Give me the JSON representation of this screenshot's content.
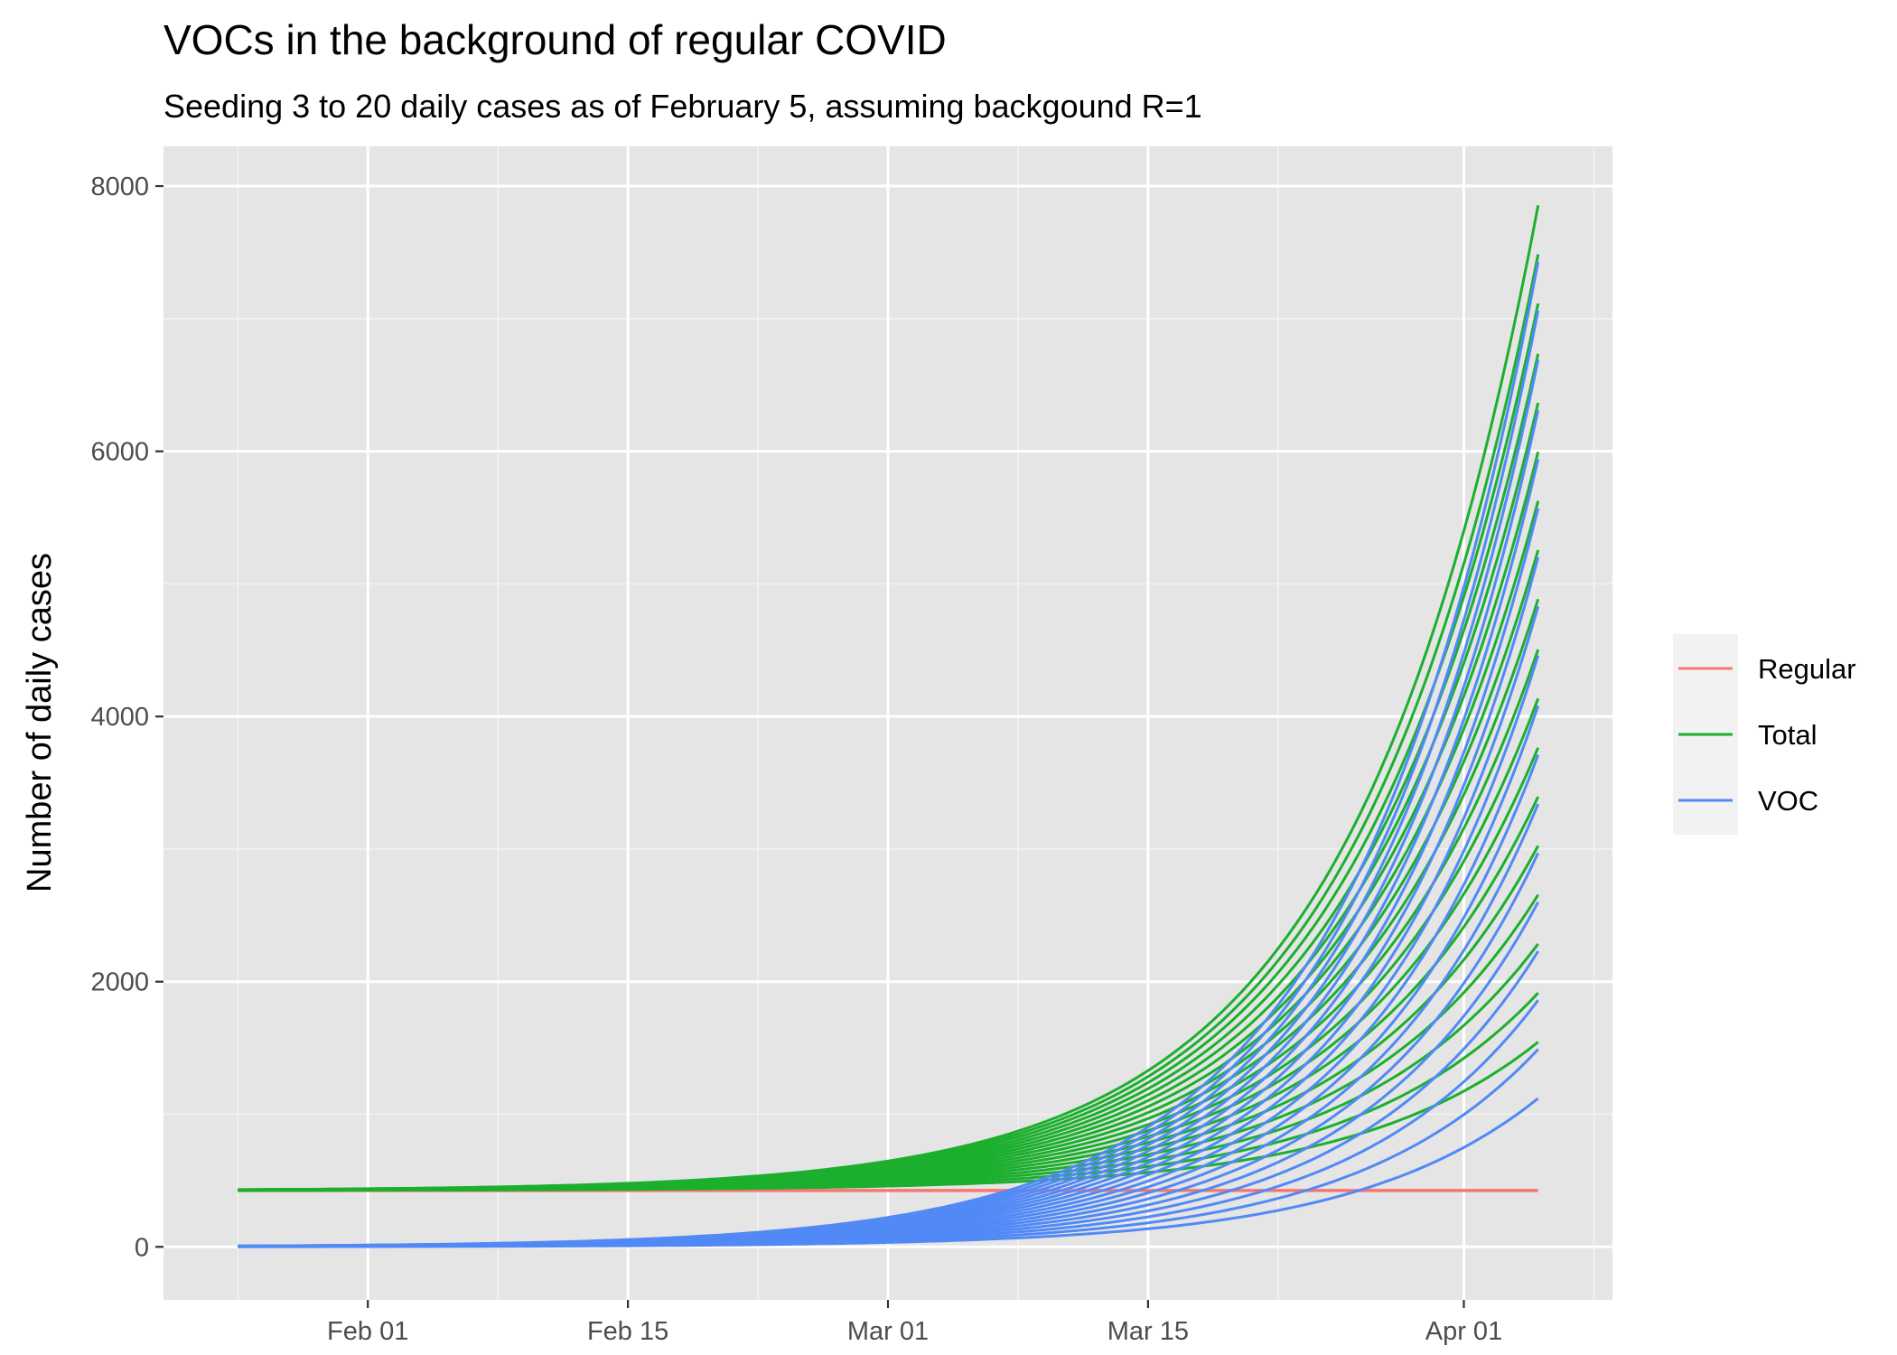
{
  "colors": {
    "panel_background": "#E5E5E5",
    "grid_major": "#FFFFFF",
    "grid_minor": "#F2F2F2",
    "tick_mark": "#333333",
    "tick_label": "#4D4D4D",
    "regular": "#F8766D",
    "total": "#1CAF2E",
    "voc": "#5189F6",
    "legend_background": "#F2F2F2"
  },
  "chart_data": {
    "type": "line",
    "title": "VOCs in the background of regular COVID",
    "subtitle": "Seeding 3 to 20 daily cases as of February 5, assuming backgound R=1",
    "xlabel": "",
    "ylabel": "Number of daily cases",
    "x_axis_type": "date",
    "x_start": "2021-01-25",
    "x_end": "2021-04-05",
    "xlim": [
      "2021-01-21",
      "2021-04-09"
    ],
    "x_ticks": [
      {
        "date": "2021-02-01",
        "label": "Feb 01"
      },
      {
        "date": "2021-02-15",
        "label": "Feb 15"
      },
      {
        "date": "2021-03-01",
        "label": "Mar 01"
      },
      {
        "date": "2021-03-15",
        "label": "Mar 15"
      },
      {
        "date": "2021-04-01",
        "label": "Apr 01"
      }
    ],
    "x_minor_ticks": [
      "2021-01-25",
      "2021-02-08",
      "2021-02-22",
      "2021-03-08",
      "2021-03-22",
      "2021-04-08"
    ],
    "ylim": [
      -400,
      8300
    ],
    "y_ticks": [
      0,
      2000,
      4000,
      6000,
      8000
    ],
    "y_tick_labels": [
      "0",
      "2000",
      "4000",
      "6000",
      "8000"
    ],
    "y_minor_ticks": [
      1000,
      3000,
      5000,
      7000
    ],
    "grid": true,
    "regular_cases": 425,
    "seed_date": "2021-02-05",
    "seed_daily_cases": [
      3,
      4,
      5,
      6,
      7,
      8,
      9,
      10,
      11,
      12,
      13,
      14,
      15,
      16,
      17,
      18,
      19,
      20
    ],
    "voc_end_values": [
      1120,
      1490,
      1860,
      2230,
      2600,
      2970,
      3340,
      3710,
      4080,
      4460,
      4830,
      5200,
      5570,
      5940,
      6310,
      6690,
      7060,
      7430
    ],
    "series_groups": [
      {
        "name": "Regular"
      },
      {
        "name": "Total"
      },
      {
        "name": "VOC"
      }
    ],
    "legend": {
      "position": "right",
      "entries": [
        {
          "label": "Regular",
          "color": "#F8766D"
        },
        {
          "label": "Total",
          "color": "#1CAF2E"
        },
        {
          "label": "VOC",
          "color": "#5189F6"
        }
      ]
    }
  }
}
